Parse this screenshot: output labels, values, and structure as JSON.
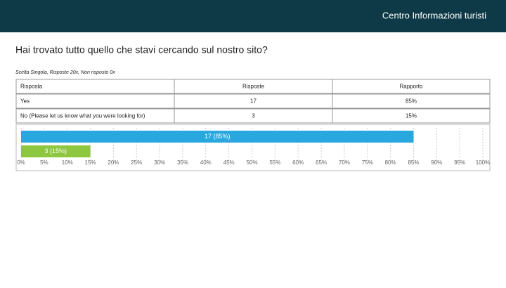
{
  "header": {
    "title": "Centro Informazioni turisti"
  },
  "question": "Hai trovato tutto quello che stavi cercando sul nostro sito?",
  "subtitle": "Scelta Singola, Risposte 20x, Non risposto 0x",
  "table": {
    "columns": [
      "Risposta",
      "Risposte",
      "Rapporto"
    ],
    "rows": [
      [
        "Yes",
        "17",
        "85%"
      ],
      [
        "No (Please let us know what you were looking for)",
        "3",
        "15%"
      ]
    ]
  },
  "chart_data": {
    "type": "hbar",
    "categories": [
      null,
      null
    ],
    "values": [
      85,
      15
    ],
    "value_labels": [
      "17 (85%)",
      "3 (15%)"
    ],
    "colors": [
      "#29a8e0",
      "#8dc63f"
    ],
    "xlim": [
      0,
      100
    ],
    "xticks": [
      {
        "value": 0,
        "label": "0%"
      },
      {
        "value": 5,
        "label": "5%"
      },
      {
        "value": 10,
        "label": "10%"
      },
      {
        "value": 15,
        "label": "15%"
      },
      {
        "value": 20,
        "label": "20%"
      },
      {
        "value": 25,
        "label": "25%"
      },
      {
        "value": 30,
        "label": "30%"
      },
      {
        "value": 35,
        "label": "35%"
      },
      {
        "value": 40,
        "label": "40%"
      },
      {
        "value": 45,
        "label": "45%"
      },
      {
        "value": 50,
        "label": "50%"
      },
      {
        "value": 55,
        "label": "55%"
      },
      {
        "value": 60,
        "label": "60%"
      },
      {
        "value": 65,
        "label": "65%"
      },
      {
        "value": 70,
        "label": "70%"
      },
      {
        "value": 75,
        "label": "75%"
      },
      {
        "value": 80,
        "label": "80%"
      },
      {
        "value": 85,
        "label": "85%"
      },
      {
        "value": 90,
        "label": "90%"
      },
      {
        "value": 95,
        "label": "95%"
      },
      {
        "value": 100,
        "label": "100%"
      }
    ],
    "grid": true
  }
}
